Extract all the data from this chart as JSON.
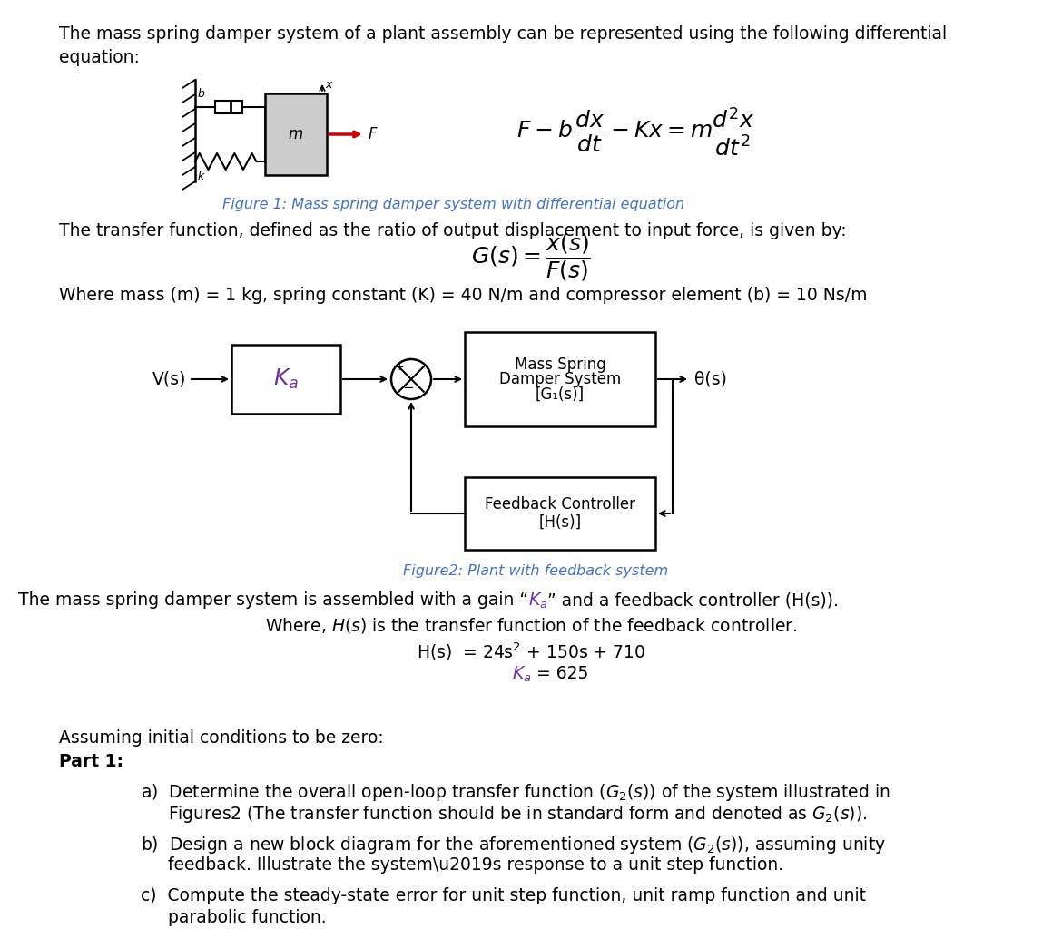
{
  "bg_color": "#ffffff",
  "text_color": "#000000",
  "figure_caption_color": "#4472c4",
  "ka_color": "#7030a0",
  "line1": "The mass spring damper system of a plant assembly can be represented using the following differential",
  "line2": "equation:",
  "fig1_caption": "Figure 1: Mass spring damper system with differential equation",
  "tf_line": "The transfer function, defined as the ratio of output displacement to input force, is given by:",
  "param_line": "Where mass (m) = 1 kg, spring constant (K) = 40 N/m and compressor element (b) = 10 Ns/m",
  "fig2_caption": "Figure2: Plant with feedback system",
  "assuming_line": "Assuming initial conditions to be zero:",
  "part1_label": "Part 1:",
  "block1_lines": [
    "Mass Spring",
    "Damper System",
    "[G₁(s)]"
  ],
  "block2_lines": [
    "Feedback Controller",
    "[H(s)]"
  ],
  "vs_label": "V(s)",
  "theta_label": "θ(s)"
}
